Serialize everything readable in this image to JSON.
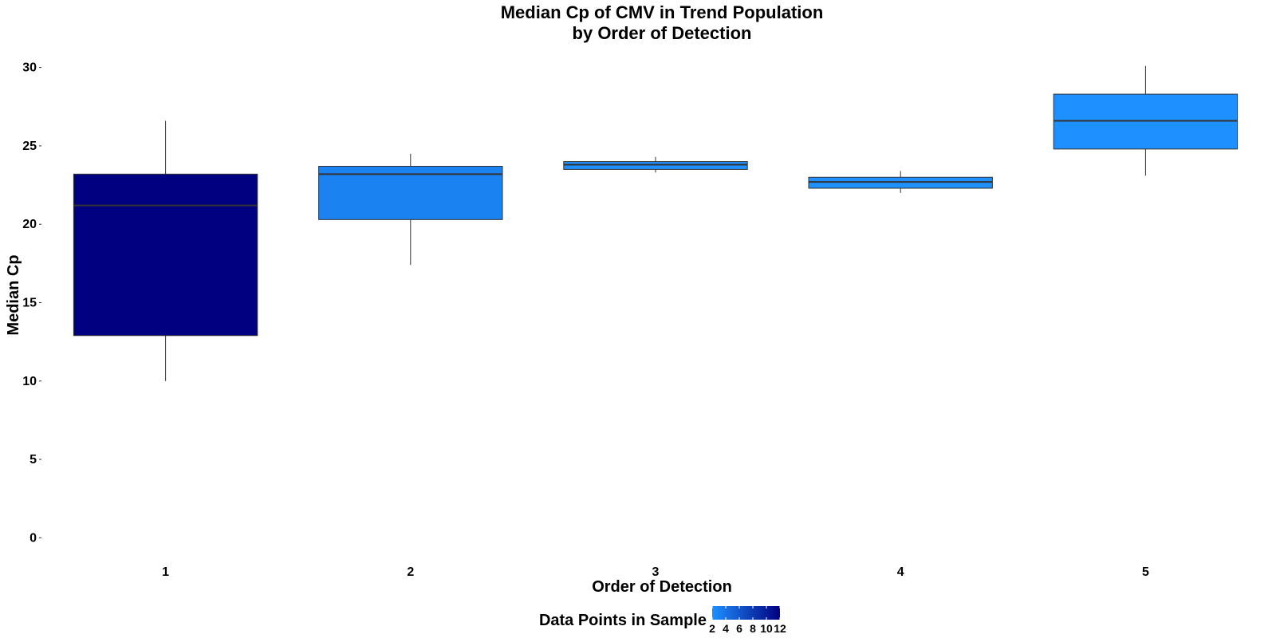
{
  "chart_data": {
    "type": "boxplot",
    "title": [
      "Median Cp of CMV in Trend Population",
      "by Order of Detection"
    ],
    "xlabel": "Order of Detection",
    "ylabel": "Median Cp",
    "categories": [
      "1",
      "2",
      "3",
      "4",
      "5"
    ],
    "ylim": [
      -1,
      31
    ],
    "yticks": [
      0,
      5,
      10,
      15,
      20,
      25,
      30
    ],
    "grid": false,
    "boxes": [
      {
        "x": "1",
        "min": 10.0,
        "q1": 12.9,
        "median": 21.2,
        "q3": 23.2,
        "max": 26.6,
        "n": 12
      },
      {
        "x": "2",
        "min": 17.4,
        "q1": 20.3,
        "median": 23.2,
        "q3": 23.7,
        "max": 24.5,
        "n": 3
      },
      {
        "x": "3",
        "min": 23.3,
        "q1": 23.5,
        "median": 23.8,
        "q3": 24.0,
        "max": 24.3,
        "n": 2
      },
      {
        "x": "4",
        "min": 22.0,
        "q1": 22.3,
        "median": 22.7,
        "q3": 23.0,
        "max": 23.4,
        "n": 2
      },
      {
        "x": "5",
        "min": 23.1,
        "q1": 24.8,
        "median": 26.6,
        "q3": 28.3,
        "max": 30.1,
        "n": 2
      }
    ],
    "legend": {
      "title": "Data Points in Sample",
      "placement": "bottom",
      "ticks": [
        "2",
        "4",
        "6",
        "8",
        "10",
        "12"
      ],
      "range": [
        2,
        12
      ],
      "low_color": "#1E90FF",
      "high_color": "#000080"
    }
  }
}
